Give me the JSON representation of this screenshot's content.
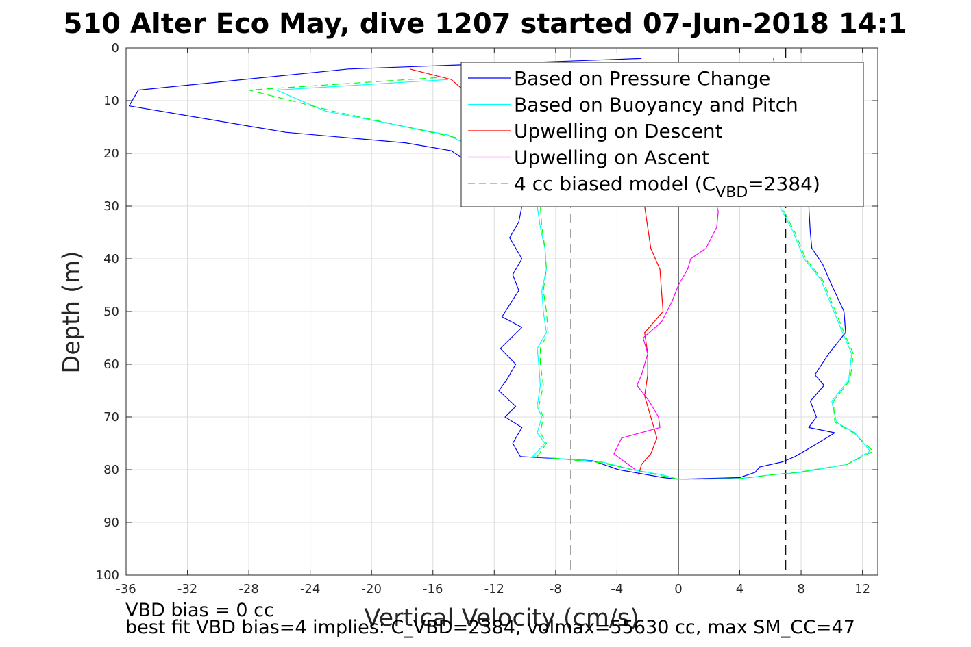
{
  "chart_data": {
    "type": "line",
    "title": "510 Alter Eco May, dive 1207 started 07-Jun-2018 14:1",
    "xlabel": "Vertical Velocity (cm/s)",
    "ylabel": "Depth (m)",
    "xlim": [
      -36,
      13
    ],
    "ylim": [
      0,
      100
    ],
    "y_reversed": true,
    "grid": true,
    "legend_position": "top-right",
    "xticks": [
      -36,
      -32,
      -28,
      -24,
      -20,
      -16,
      -12,
      -8,
      -4,
      0,
      4,
      8,
      12
    ],
    "yticks": [
      0,
      10,
      20,
      30,
      40,
      50,
      60,
      70,
      80,
      90,
      100
    ],
    "reference_lines": [
      {
        "x": -7,
        "style": "dashed",
        "color": "#000000"
      },
      {
        "x": 0,
        "style": "solid",
        "color": "#000000"
      },
      {
        "x": 7,
        "style": "dashed",
        "color": "#000000"
      }
    ],
    "legend": {
      "entries": [
        {
          "text": "Based on Pressure Change",
          "color": "#0000ff",
          "dash": "none"
        },
        {
          "text": "Based on Buoyancy and Pitch",
          "color": "#00ffff",
          "dash": "none"
        },
        {
          "text": "Upwelling on Descent",
          "color": "#ff0000",
          "dash": "none"
        },
        {
          "text": "Upwelling on Ascent",
          "color": "#ff00ff",
          "dash": "none"
        },
        {
          "text": "4 cc biased model (C",
          "sub": "VBD",
          "suffix": "=2384)",
          "color": "#00ff00",
          "dash": "10,6"
        }
      ]
    },
    "series": [
      {
        "name": "Based on Pressure Change",
        "color": "#0000ff",
        "points": [
          [
            -2.4,
            2
          ],
          [
            -21.5,
            4
          ],
          [
            -35.2,
            8
          ],
          [
            -35.8,
            11
          ],
          [
            -25.6,
            16
          ],
          [
            -17.8,
            18
          ],
          [
            -14.8,
            19.5
          ],
          [
            -13,
            23
          ],
          [
            -11.2,
            27
          ],
          [
            -10.2,
            30
          ],
          [
            -10.4,
            33
          ],
          [
            -11,
            36
          ],
          [
            -10.2,
            40
          ],
          [
            -10.8,
            43
          ],
          [
            -10.4,
            46
          ],
          [
            -11.5,
            51
          ],
          [
            -10.2,
            53
          ],
          [
            -11.6,
            57
          ],
          [
            -10.6,
            60
          ],
          [
            -11.2,
            63
          ],
          [
            -11.7,
            65
          ],
          [
            -10.6,
            68
          ],
          [
            -11.3,
            70
          ],
          [
            -10.2,
            72
          ],
          [
            -10.8,
            75
          ],
          [
            -10.3,
            77.5
          ],
          [
            -5.6,
            78.3
          ],
          [
            -3.9,
            80
          ],
          [
            -1,
            81.5
          ],
          [
            0,
            81.8
          ],
          [
            4,
            81.5
          ],
          [
            5,
            80.5
          ],
          [
            5.3,
            79.5
          ],
          [
            6.8,
            78.5
          ],
          [
            7.6,
            77.5
          ],
          [
            8.5,
            76
          ],
          [
            10.2,
            73
          ],
          [
            8.5,
            72
          ],
          [
            9,
            70
          ],
          [
            8.6,
            67
          ],
          [
            9.5,
            64
          ],
          [
            8.9,
            62
          ],
          [
            9.8,
            58
          ],
          [
            10.9,
            54
          ],
          [
            10.8,
            50
          ],
          [
            10,
            45
          ],
          [
            9.4,
            41
          ],
          [
            8.7,
            38
          ],
          [
            8.6,
            35
          ],
          [
            8.5,
            30
          ],
          [
            8.1,
            26
          ],
          [
            7.4,
            22
          ],
          [
            6.2,
            2
          ]
        ]
      },
      {
        "name": "Based on Buoyancy and Pitch",
        "color": "#00ffff",
        "points": [
          [
            -15,
            6
          ],
          [
            -26.2,
            8
          ],
          [
            -23,
            12
          ],
          [
            -15,
            16.5
          ],
          [
            -12,
            21
          ],
          [
            -10,
            25
          ],
          [
            -9.2,
            30
          ],
          [
            -9,
            34
          ],
          [
            -8.7,
            38
          ],
          [
            -8.6,
            42
          ],
          [
            -8.9,
            46
          ],
          [
            -8.8,
            50
          ],
          [
            -8.6,
            54
          ],
          [
            -9.2,
            57
          ],
          [
            -9.1,
            60
          ],
          [
            -9,
            64
          ],
          [
            -9.2,
            68
          ],
          [
            -8.9,
            70
          ],
          [
            -9.2,
            73
          ],
          [
            -8.7,
            75
          ],
          [
            -9.5,
            77.5
          ],
          [
            -5,
            78.5
          ],
          [
            -3,
            80
          ],
          [
            -1,
            81
          ],
          [
            0,
            81.8
          ],
          [
            4,
            81.7
          ],
          [
            6,
            81
          ],
          [
            8,
            80.5
          ],
          [
            11,
            79
          ],
          [
            12.5,
            76.5
          ],
          [
            11.5,
            73
          ],
          [
            10.3,
            71
          ],
          [
            10,
            67
          ],
          [
            11.1,
            63
          ],
          [
            11.3,
            58
          ],
          [
            10.7,
            54
          ],
          [
            10,
            49
          ],
          [
            9.3,
            44
          ],
          [
            8.2,
            40
          ],
          [
            7.5,
            35
          ],
          [
            6.6,
            30
          ],
          [
            5.5,
            25
          ]
        ]
      },
      {
        "name": "Upwelling on Descent",
        "color": "#ff0000",
        "points": [
          [
            -17.5,
            4
          ],
          [
            -14.8,
            6
          ],
          [
            -14,
            8
          ],
          [
            -14,
            11
          ],
          [
            -13.8,
            14
          ],
          [
            -2.2,
            30
          ],
          [
            -2,
            34
          ],
          [
            -1.8,
            38
          ],
          [
            -1.2,
            42
          ],
          [
            -1.1,
            46
          ],
          [
            -1,
            50
          ],
          [
            -2.2,
            54
          ],
          [
            -2,
            58
          ],
          [
            -2,
            62
          ],
          [
            -2.2,
            66
          ],
          [
            -1.8,
            70
          ],
          [
            -1.4,
            74
          ],
          [
            -1.8,
            77
          ],
          [
            -2.4,
            79
          ],
          [
            -2.6,
            81
          ]
        ]
      },
      {
        "name": "Upwelling on Ascent",
        "color": "#ff00ff",
        "points": [
          [
            -2.8,
            80
          ],
          [
            -4.2,
            77
          ],
          [
            -3.7,
            74
          ],
          [
            -1.2,
            72
          ],
          [
            -1.3,
            70
          ],
          [
            -1.9,
            67
          ],
          [
            -2.7,
            64
          ],
          [
            -2.4,
            62
          ],
          [
            -2,
            58
          ],
          [
            -2.3,
            55
          ],
          [
            -1.1,
            52
          ],
          [
            -0.4,
            48
          ],
          [
            0,
            45
          ],
          [
            0.6,
            42
          ],
          [
            0.8,
            40
          ],
          [
            1.8,
            38
          ],
          [
            2.5,
            34
          ],
          [
            2.6,
            31
          ],
          [
            2.3,
            28
          ]
        ]
      },
      {
        "name": "4 cc biased model (CVBD=2384)",
        "color": "#00ff00",
        "dashed": true,
        "points": [
          [
            -15,
            5.5
          ],
          [
            -28,
            8
          ],
          [
            -22.5,
            12
          ],
          [
            -14.5,
            17
          ],
          [
            -11.8,
            21
          ],
          [
            -9.8,
            25
          ],
          [
            -9,
            30
          ],
          [
            -8.9,
            34
          ],
          [
            -8.7,
            38
          ],
          [
            -8.6,
            42
          ],
          [
            -8.8,
            46
          ],
          [
            -8.6,
            50
          ],
          [
            -8.5,
            54
          ],
          [
            -9,
            57
          ],
          [
            -9,
            60
          ],
          [
            -8.8,
            64
          ],
          [
            -9.1,
            68
          ],
          [
            -8.8,
            70
          ],
          [
            -9,
            73
          ],
          [
            -8.6,
            75
          ],
          [
            -9.2,
            77.5
          ],
          [
            -5,
            78.7
          ],
          [
            -3,
            80
          ],
          [
            -1,
            81.2
          ],
          [
            0,
            81.8
          ],
          [
            4,
            81.7
          ],
          [
            6,
            81
          ],
          [
            8,
            80.4
          ],
          [
            11,
            79
          ],
          [
            12.7,
            76.5
          ],
          [
            11.4,
            73
          ],
          [
            10.2,
            71
          ],
          [
            10.1,
            67
          ],
          [
            11.2,
            63
          ],
          [
            11.4,
            58
          ],
          [
            10.8,
            54
          ],
          [
            10.1,
            49
          ],
          [
            9.4,
            44
          ],
          [
            8.3,
            40
          ],
          [
            7.6,
            35
          ],
          [
            6.7,
            30
          ]
        ]
      }
    ]
  },
  "footer": {
    "line1": "VBD bias = 0 cc",
    "line2": "best fit VBD bias=4 implies: C_VBD=2384, volmax=55630 cc, max SM_CC=47"
  }
}
